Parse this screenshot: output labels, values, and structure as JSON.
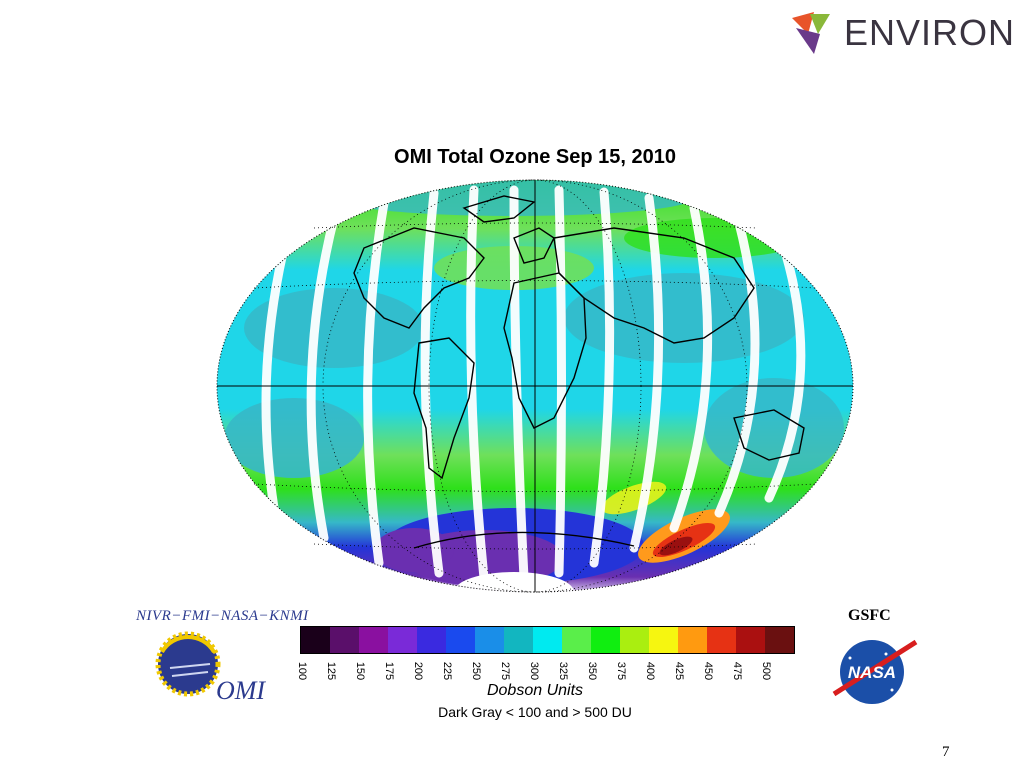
{
  "brand": {
    "name": "ENVIRON"
  },
  "map": {
    "title": "OMI Total Ozone Sep 15, 2010",
    "projection": "elliptical world map",
    "palette": {
      "ocean_low": "#1fd6e8",
      "mid": "#36b8c8",
      "green": "#6fe05a",
      "bright_green": "#2ee01a",
      "yellow": "#e6f21c",
      "orange": "#ff9a1c",
      "red": "#e63214",
      "dark_red": "#9a1010",
      "purple": "#6a2fb0",
      "blue": "#2434d8",
      "land_outline": "#000000",
      "missing": "#ffffff"
    }
  },
  "colorbar": {
    "colors": [
      "#1a001a",
      "#5a0f6a",
      "#8a10a0",
      "#7a2ad8",
      "#3a2ae0",
      "#1a4aee",
      "#1a8ee8",
      "#12b6c0",
      "#00eaf0",
      "#5aee4a",
      "#10ee10",
      "#aaee10",
      "#f6f610",
      "#ff9a10",
      "#e63214",
      "#aa1010",
      "#6a1010"
    ],
    "ticks": [
      "100",
      "125",
      "150",
      "175",
      "200",
      "225",
      "250",
      "275",
      "300",
      "325",
      "350",
      "375",
      "400",
      "425",
      "450",
      "475",
      "500"
    ],
    "units_label": "Dobson Units",
    "range_note": "Dark Gray < 100 and > 500 DU"
  },
  "credits": {
    "org_line": "NIVR−FMI−NASA−KNMI",
    "instrument_logo_text": "OMI",
    "center": "GSFC",
    "agency_logo_text": "NASA"
  },
  "page": {
    "number": "7"
  }
}
